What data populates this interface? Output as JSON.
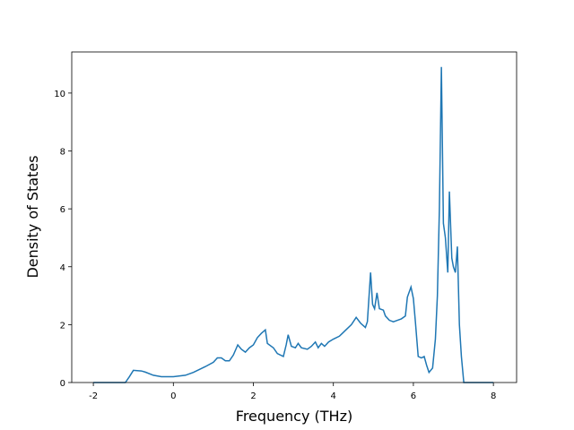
{
  "chart_data": {
    "type": "line",
    "x_label": "Frequency (THz)",
    "y_label": "Density of States",
    "xlim": [
      -2.54,
      8.58
    ],
    "ylim": [
      0,
      11.42
    ],
    "xticks": [
      -2,
      0,
      2,
      4,
      6,
      8
    ],
    "yticks": [
      0,
      2,
      4,
      6,
      8,
      10
    ],
    "x": [
      -2.0,
      -1.2,
      -1.1,
      -1.0,
      -0.8,
      -0.7,
      -0.5,
      -0.3,
      0,
      0.3,
      0.5,
      0.8,
      1.0,
      1.1,
      1.2,
      1.3,
      1.4,
      1.5,
      1.61,
      1.7,
      1.8,
      1.9,
      2.0,
      2.1,
      2.2,
      2.3,
      2.35,
      2.5,
      2.6,
      2.75,
      2.82,
      2.87,
      2.95,
      3.05,
      3.12,
      3.2,
      3.35,
      3.45,
      3.55,
      3.62,
      3.7,
      3.78,
      3.88,
      4.0,
      4.15,
      4.3,
      4.45,
      4.57,
      4.68,
      4.8,
      4.85,
      4.93,
      4.98,
      5.03,
      5.09,
      5.15,
      5.25,
      5.3,
      5.4,
      5.5,
      5.6,
      5.7,
      5.8,
      5.85,
      5.94,
      6.0,
      6.05,
      6.12,
      6.2,
      6.27,
      6.33,
      6.39,
      6.48,
      6.55,
      6.6,
      6.65,
      6.7,
      6.75,
      6.8,
      6.86,
      6.9,
      6.96,
      7.0,
      7.05,
      7.1,
      7.15,
      7.2,
      7.26,
      8.0
    ],
    "series": [
      {
        "color": "#1f77b4",
        "values": [
          0,
          0,
          0.2,
          0.42,
          0.4,
          0.36,
          0.25,
          0.2,
          0.2,
          0.25,
          0.35,
          0.55,
          0.7,
          0.85,
          0.85,
          0.75,
          0.75,
          0.95,
          1.3,
          1.15,
          1.05,
          1.2,
          1.3,
          1.55,
          1.7,
          1.82,
          1.35,
          1.2,
          1.0,
          0.9,
          1.3,
          1.65,
          1.25,
          1.2,
          1.35,
          1.2,
          1.15,
          1.25,
          1.4,
          1.2,
          1.35,
          1.25,
          1.4,
          1.5,
          1.6,
          1.8,
          2.0,
          2.25,
          2.05,
          1.9,
          2.1,
          3.8,
          2.7,
          2.55,
          3.1,
          2.55,
          2.5,
          2.3,
          2.15,
          2.1,
          2.15,
          2.2,
          2.3,
          2.95,
          3.3,
          2.9,
          2.1,
          0.9,
          0.85,
          0.9,
          0.6,
          0.35,
          0.5,
          1.5,
          3.0,
          6.0,
          10.9,
          5.5,
          5.0,
          3.8,
          6.6,
          4.3,
          4.0,
          3.8,
          4.7,
          2.0,
          0.9,
          0,
          0
        ]
      }
    ]
  }
}
